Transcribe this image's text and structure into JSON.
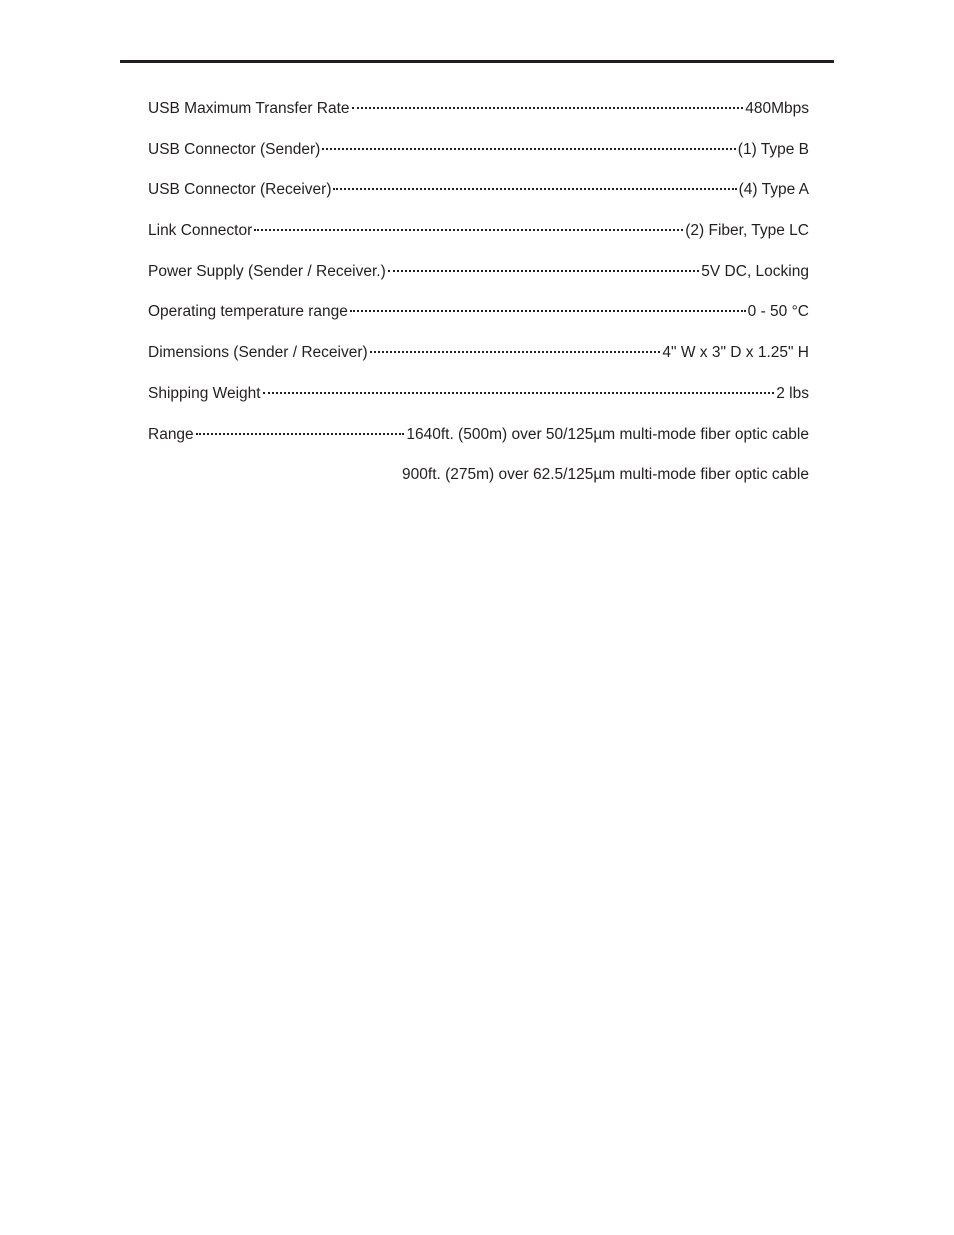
{
  "page": {
    "divider_color": "#231f20",
    "background_color": "#ffffff",
    "text_color": "#231f20",
    "font_size_pt": 11.5
  },
  "specs": [
    {
      "label": "USB Maximum Transfer Rate",
      "value": "480Mbps"
    },
    {
      "label": "USB Connector (Sender)",
      "value": "(1) Type B"
    },
    {
      "label": "USB Connector (Receiver) ",
      "value": "(4) Type A"
    },
    {
      "label": "Link Connector",
      "value": "(2) Fiber, Type LC"
    },
    {
      "label": "Power Supply (Sender / Receiver.)",
      "value": "5V DC, Locking"
    },
    {
      "label": "Operating temperature range",
      "value": "0 - 50 °C"
    },
    {
      "label": "Dimensions (Sender / Receiver)",
      "value": "4\" W x 3\" D x 1.25\" H"
    },
    {
      "label": "Shipping Weight",
      "value": "2 lbs"
    },
    {
      "label": "Range",
      "value": "1640ft. (500m) over 50/125µm multi-mode fiber optic cable"
    }
  ],
  "continuation": "900ft. (275m) over 62.5/125µm multi-mode fiber optic cable"
}
